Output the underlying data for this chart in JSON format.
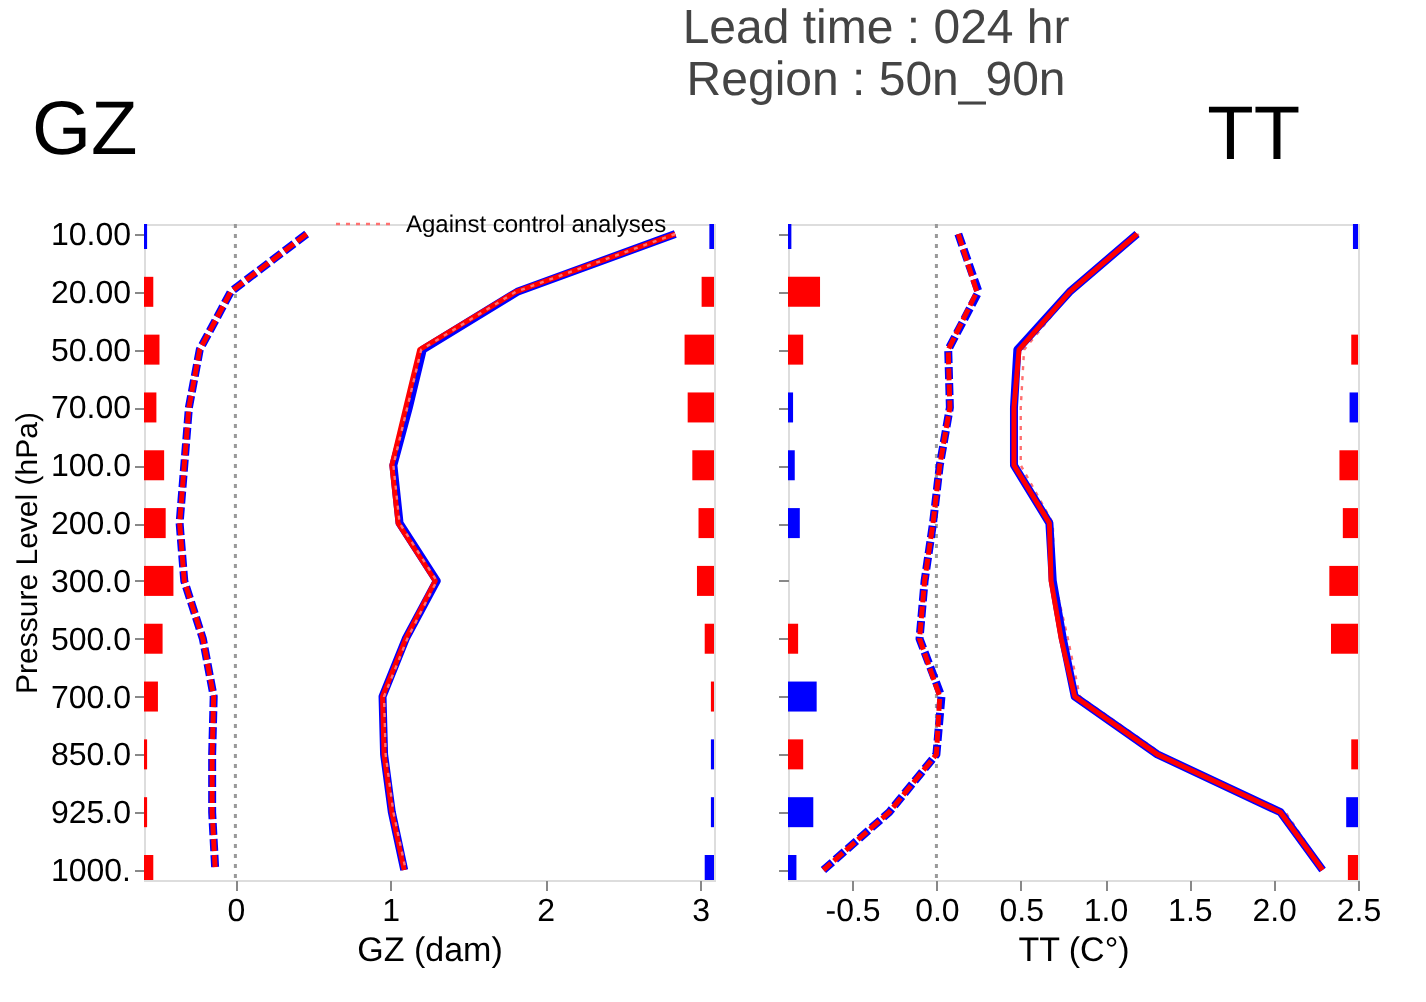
{
  "chart_data": [
    {
      "type": "line",
      "title": "GZ",
      "orientation": "horizontal",
      "annotations": [
        "Lead time : 024 hr",
        "Region : 50n_90n"
      ],
      "xlabel": "GZ (dam)",
      "ylabel": "Pressure Level (hPa)",
      "legend": "top",
      "categories": [
        "10.00",
        "20.00",
        "50.00",
        "70.00",
        "100.0",
        "200.0",
        "300.0",
        "500.0",
        "700.0",
        "850.0",
        "925.0",
        "1000."
      ],
      "xlim": [
        -0.59,
        3.09
      ],
      "xticks": [
        0,
        1,
        2,
        3
      ],
      "grid": false,
      "ref_lines": [
        {
          "axis": "x",
          "value": 0,
          "color": "#999999",
          "line_style": "dotted"
        }
      ],
      "series": [
        {
          "type": "bar",
          "base": [
            -0.59,
            -0.59,
            -0.59,
            -0.59,
            -0.59,
            -0.59,
            -0.59,
            -0.59,
            -0.59,
            -0.59,
            -0.59,
            -0.59
          ],
          "values": [
            0.02,
            0.06,
            0.1,
            0.08,
            0.13,
            0.14,
            0.19,
            0.12,
            0.09,
            0.02,
            0.02,
            0.06
          ],
          "colors": [
            "#0000ff",
            "#ff0000",
            "#ff0000",
            "#ff0000",
            "#ff0000",
            "#ff0000",
            "#ff0000",
            "#ff0000",
            "#ff0000",
            "#ff0000",
            "#ff0000",
            "#ff0000"
          ]
        },
        {
          "type": "bar",
          "base": [
            3.09,
            3.09,
            3.09,
            3.09,
            3.09,
            3.09,
            3.09,
            3.09,
            3.09,
            3.09,
            3.09,
            3.09
          ],
          "values": [
            -0.03,
            -0.08,
            -0.19,
            -0.17,
            -0.14,
            -0.1,
            -0.11,
            -0.06,
            -0.02,
            -0.02,
            -0.02,
            -0.06
          ],
          "colors": [
            "#0000ff",
            "#ff0000",
            "#ff0000",
            "#ff0000",
            "#ff0000",
            "#ff0000",
            "#ff0000",
            "#ff0000",
            "#ff0000",
            "#0000ff",
            "#0000ff",
            "#0000ff"
          ]
        },
        {
          "name": "Against control analyses",
          "color": "#ff7070",
          "line_style": "dotted",
          "values": [
            2.84,
            1.81,
            1.2,
            1.11,
            1.02,
            1.06,
            1.3,
            1.11,
            0.96,
            0.97,
            1.02,
            1.1
          ]
        },
        {
          "color": "#0000ff",
          "line_style": "solid",
          "values": [
            2.84,
            1.82,
            1.21,
            1.12,
            1.02,
            1.06,
            1.3,
            1.1,
            0.95,
            0.96,
            1.01,
            1.09
          ]
        },
        {
          "color": "#ff0000",
          "line_style": "solid",
          "values": [
            2.84,
            1.81,
            1.19,
            1.1,
            1.01,
            1.05,
            1.29,
            1.1,
            0.95,
            0.96,
            1.01,
            1.09
          ]
        },
        {
          "color": "#0000ff",
          "line_style": "dashed",
          "values": [
            0.46,
            -0.03,
            -0.23,
            -0.3,
            -0.33,
            -0.36,
            -0.33,
            -0.21,
            -0.14,
            -0.15,
            -0.15,
            -0.13
          ]
        },
        {
          "color": "#ff0000",
          "line_style": "dashed",
          "values": [
            0.46,
            -0.03,
            -0.23,
            -0.3,
            -0.33,
            -0.36,
            -0.33,
            -0.21,
            -0.14,
            -0.15,
            -0.15,
            -0.13
          ]
        }
      ]
    },
    {
      "type": "line",
      "title": "TT",
      "orientation": "horizontal",
      "xlabel": "TT (C°)",
      "tick_labels": "x",
      "categories": [
        "10.00",
        "20.00",
        "50.00",
        "70.00",
        "100.0",
        "200.0",
        "300.0",
        "500.0",
        "700.0",
        "850.0",
        "925.0",
        "1000."
      ],
      "xlim": [
        -0.88,
        2.5
      ],
      "xticks": [
        {
          "value": -0.5,
          "label": "-0.5"
        },
        {
          "value": 0,
          "label": "0.0"
        },
        {
          "value": 0.5,
          "label": "0.5"
        },
        {
          "value": 1,
          "label": "1.0"
        },
        {
          "value": 1.5,
          "label": "1.5"
        },
        {
          "value": 2,
          "label": "2.0"
        },
        {
          "value": 2.5,
          "label": "2.5"
        }
      ],
      "grid": false,
      "ref_lines": [
        {
          "axis": "x",
          "value": 0,
          "color": "#999999",
          "line_style": "dotted"
        }
      ],
      "series": [
        {
          "type": "bar",
          "base": [
            -0.88,
            -0.88,
            -0.88,
            -0.88,
            -0.88,
            -0.88,
            null,
            -0.88,
            -0.88,
            -0.88,
            -0.88,
            -0.88
          ],
          "values": [
            0.02,
            0.19,
            0.09,
            0.03,
            0.04,
            0.07,
            null,
            0.06,
            0.17,
            0.09,
            0.15,
            0.05
          ],
          "colors": [
            "#0000ff",
            "#ff0000",
            "#ff0000",
            "#0000ff",
            "#0000ff",
            "#0000ff",
            "#ff0000",
            "#ff0000",
            "#0000ff",
            "#ff0000",
            "#0000ff",
            "#0000ff"
          ]
        },
        {
          "type": "bar",
          "base": [
            2.5,
            null,
            2.5,
            2.5,
            2.5,
            2.5,
            2.5,
            2.5,
            null,
            2.5,
            2.5,
            2.5
          ],
          "values": [
            -0.03,
            null,
            -0.04,
            -0.05,
            -0.11,
            -0.09,
            -0.17,
            -0.16,
            null,
            -0.04,
            -0.07,
            -0.06
          ],
          "colors": [
            "#0000ff",
            "#ff0000",
            "#ff0000",
            "#0000ff",
            "#ff0000",
            "#ff0000",
            "#ff0000",
            "#ff0000",
            "#ff0000",
            "#ff0000",
            "#0000ff",
            "#ff0000"
          ]
        },
        {
          "color": "#ff7070",
          "line_style": "dotted",
          "values": [
            1.2,
            0.8,
            0.52,
            0.5,
            0.5,
            0.69,
            0.7,
            0.78,
            0.85,
            1.34,
            2.07,
            2.3
          ]
        },
        {
          "color": "#0000ff",
          "line_style": "solid",
          "values": [
            1.19,
            0.79,
            0.48,
            0.46,
            0.46,
            0.67,
            0.69,
            0.75,
            0.82,
            1.31,
            2.04,
            2.29
          ]
        },
        {
          "color": "#ff0000",
          "line_style": "solid",
          "values": [
            1.19,
            0.79,
            0.49,
            0.46,
            0.46,
            0.67,
            0.68,
            0.74,
            0.82,
            1.31,
            2.04,
            2.29
          ]
        },
        {
          "color": "#0000ff",
          "line_style": "dashed",
          "values": [
            0.13,
            0.25,
            0.07,
            0.08,
            0.02,
            -0.02,
            -0.07,
            -0.1,
            0.03,
            0.0,
            -0.28,
            -0.67
          ]
        },
        {
          "color": "#ff0000",
          "line_style": "dashed",
          "values": [
            0.13,
            0.24,
            0.07,
            0.08,
            0.02,
            -0.02,
            -0.07,
            -0.1,
            0.02,
            0.0,
            -0.28,
            -0.67
          ]
        }
      ]
    }
  ]
}
